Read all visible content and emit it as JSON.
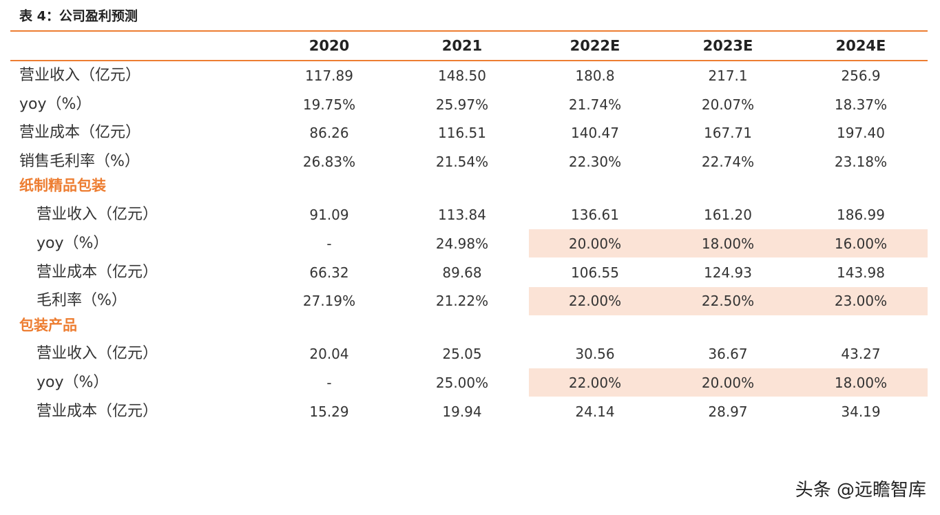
{
  "header": {
    "title": "表 4：公司盈利预测"
  },
  "table": {
    "accent_color": "#ed7d31",
    "highlight_color": "#fbe3d6",
    "columns": [
      "2020",
      "2021",
      "2022E",
      "2023E",
      "2024E"
    ],
    "groups": [
      {
        "rows": [
          {
            "label": "营业收入（亿元）",
            "cells": [
              "117.89",
              "148.50",
              "180.8",
              "217.1",
              "256.9"
            ]
          },
          {
            "label": "yoy（%）",
            "cells": [
              "19.75%",
              "25.97%",
              "21.74%",
              "20.07%",
              "18.37%"
            ]
          },
          {
            "label": "营业成本（亿元）",
            "cells": [
              "86.26",
              "116.51",
              "140.47",
              "167.71",
              "197.40"
            ]
          },
          {
            "label": "销售毛利率（%）",
            "cells": [
              "26.83%",
              "21.54%",
              "22.30%",
              "22.74%",
              "23.18%"
            ]
          }
        ]
      },
      {
        "title": "纸制精品包装",
        "rows": [
          {
            "label": "营业收入（亿元）",
            "cells": [
              "91.09",
              "113.84",
              "136.61",
              "161.20",
              "186.99"
            ]
          },
          {
            "label": "yoy（%）",
            "cells": [
              "-",
              "24.98%",
              "20.00%",
              "18.00%",
              "16.00%"
            ],
            "highlight": [
              2,
              3,
              4
            ]
          },
          {
            "label": "营业成本（亿元）",
            "cells": [
              "66.32",
              "89.68",
              "106.55",
              "124.93",
              "143.98"
            ]
          },
          {
            "label": "毛利率（%）",
            "cells": [
              "27.19%",
              "21.22%",
              "22.00%",
              "22.50%",
              "23.00%"
            ],
            "highlight": [
              2,
              3,
              4
            ]
          }
        ]
      },
      {
        "title": "包装产品",
        "rows": [
          {
            "label": "营业收入（亿元）",
            "cells": [
              "20.04",
              "25.05",
              "30.56",
              "36.67",
              "43.27"
            ]
          },
          {
            "label": "yoy（%）",
            "cells": [
              "-",
              "25.00%",
              "22.00%",
              "20.00%",
              "18.00%"
            ],
            "highlight": [
              2,
              3,
              4
            ]
          },
          {
            "label": "营业成本（亿元）",
            "cells": [
              "15.29",
              "19.94",
              "24.14",
              "28.97",
              "34.19"
            ]
          }
        ]
      }
    ]
  },
  "watermark": "头条 @远瞻智库"
}
